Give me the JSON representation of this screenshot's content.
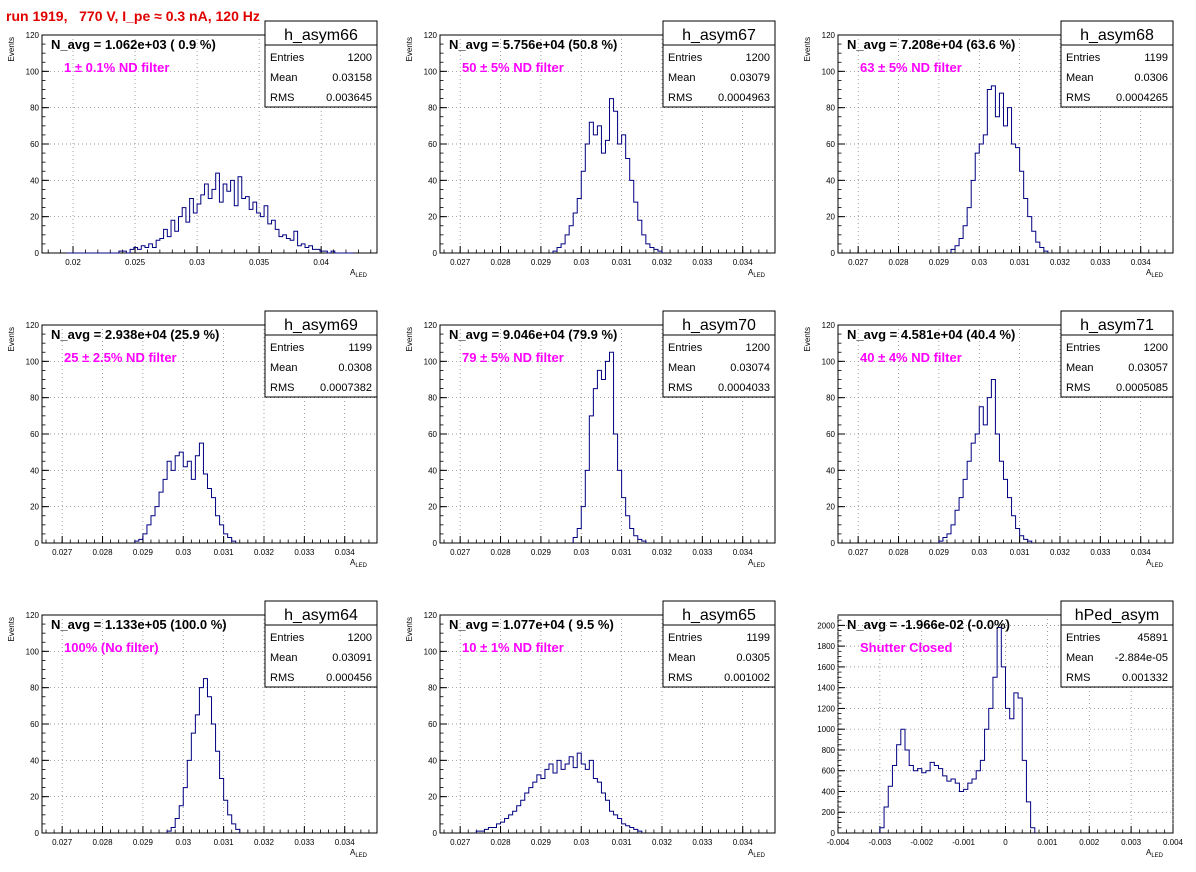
{
  "page_title": "run 1919,   770 V, I_pe ≈ 0.3 nA, 120 Hz",
  "colors": {
    "histogram_line": "#000080",
    "filter_label": "#ff00ff",
    "title": "#e00000"
  },
  "stat_labels": {
    "entries": "Entries",
    "mean": "Mean",
    "rms": "RMS"
  },
  "chart_data": [
    {
      "type": "histogram",
      "name": "h_asym66",
      "navg": "N_avg = 1.062e+03 ( 0.9 %)",
      "filter": "1 ± 0.1% ND filter",
      "entries": "1200",
      "mean": "0.03158",
      "rms": "0.003645",
      "xlabel": "A",
      "xlabel_sub": "LED",
      "ylabel": "Events",
      "xlim": [
        0.0175,
        0.0445
      ],
      "ylim": [
        0,
        120
      ],
      "xticks": [
        0.02,
        0.025,
        0.03,
        0.035,
        0.04
      ],
      "xtick_labels": [
        "0.02",
        "0.025",
        "0.03",
        "0.035",
        "0.04"
      ],
      "yticks": [
        0,
        20,
        40,
        60,
        80,
        100,
        120
      ],
      "ytick_labels": [
        "0",
        "20",
        "40",
        "60",
        "80",
        "100",
        "120"
      ],
      "bin_start": 0.0195,
      "bin_width": 0.0003,
      "counts": [
        0,
        0,
        0,
        0,
        0,
        0,
        0,
        0,
        0,
        0,
        0,
        0,
        0,
        0,
        1,
        1,
        0,
        2,
        3,
        2,
        4,
        3,
        5,
        3,
        7,
        8,
        13,
        9,
        18,
        12,
        20,
        25,
        17,
        30,
        22,
        27,
        32,
        38,
        30,
        35,
        44,
        28,
        38,
        34,
        40,
        26,
        42,
        30,
        31,
        24,
        28,
        22,
        20,
        26,
        16,
        18,
        13,
        9,
        10,
        8,
        7,
        12,
        4,
        5,
        3,
        4,
        2,
        2,
        1,
        1,
        0,
        1,
        0,
        0,
        0,
        0,
        0
      ]
    },
    {
      "type": "histogram",
      "name": "h_asym67",
      "navg": "N_avg = 5.756e+04 (50.8 %)",
      "filter": "50 ± 5% ND filter",
      "entries": "1200",
      "mean": "0.03079",
      "rms": "0.0004963",
      "xlabel": "A",
      "xlabel_sub": "LED",
      "ylabel": "Events",
      "xlim": [
        0.0265,
        0.0348
      ],
      "ylim": [
        0,
        120
      ],
      "xticks": [
        0.027,
        0.028,
        0.029,
        0.03,
        0.031,
        0.032,
        0.033,
        0.034
      ],
      "xtick_labels": [
        "0.027",
        "0.028",
        "0.029",
        "0.03",
        "0.031",
        "0.032",
        "0.033",
        "0.034"
      ],
      "yticks": [
        0,
        20,
        40,
        60,
        80,
        100,
        120
      ],
      "ytick_labels": [
        "0",
        "20",
        "40",
        "60",
        "80",
        "100",
        "120"
      ],
      "bin_start": 0.0293,
      "bin_width": 0.0001,
      "counts": [
        1,
        3,
        5,
        10,
        15,
        22,
        30,
        45,
        60,
        72,
        65,
        70,
        55,
        62,
        85,
        78,
        60,
        65,
        52,
        40,
        28,
        18,
        10,
        5,
        3,
        2,
        1
      ]
    },
    {
      "type": "histogram",
      "name": "h_asym68",
      "navg": "N_avg = 7.208e+04 (63.6 %)",
      "filter": "63 ± 5% ND filter",
      "entries": "1199",
      "mean": "0.0306",
      "rms": "0.0004265",
      "xlabel": "A",
      "xlabel_sub": "LED",
      "ylabel": "Events",
      "xlim": [
        0.0265,
        0.0348
      ],
      "ylim": [
        0,
        120
      ],
      "xticks": [
        0.027,
        0.028,
        0.029,
        0.03,
        0.031,
        0.032,
        0.033,
        0.034
      ],
      "xtick_labels": [
        "0.027",
        "0.028",
        "0.029",
        "0.03",
        "0.031",
        "0.032",
        "0.033",
        "0.034"
      ],
      "yticks": [
        0,
        20,
        40,
        60,
        80,
        100,
        120
      ],
      "ytick_labels": [
        "0",
        "20",
        "40",
        "60",
        "80",
        "100",
        "120"
      ],
      "bin_start": 0.0293,
      "bin_width": 0.0001,
      "counts": [
        2,
        4,
        8,
        15,
        25,
        40,
        55,
        60,
        65,
        90,
        92,
        75,
        88,
        70,
        80,
        60,
        58,
        45,
        30,
        20,
        12,
        6,
        3,
        1
      ]
    },
    {
      "type": "histogram",
      "name": "h_asym69",
      "navg": "N_avg = 2.938e+04 (25.9 %)",
      "filter": "25 ± 2.5% ND filter",
      "entries": "1199",
      "mean": "0.0308",
      "rms": "0.0007382",
      "xlabel": "A",
      "xlabel_sub": "LED",
      "ylabel": "Events",
      "xlim": [
        0.0265,
        0.0348
      ],
      "ylim": [
        0,
        120
      ],
      "xticks": [
        0.027,
        0.028,
        0.029,
        0.03,
        0.031,
        0.032,
        0.033,
        0.034
      ],
      "xtick_labels": [
        "0.027",
        "0.028",
        "0.029",
        "0.03",
        "0.031",
        "0.032",
        "0.033",
        "0.034"
      ],
      "yticks": [
        0,
        20,
        40,
        60,
        80,
        100,
        120
      ],
      "ytick_labels": [
        "0",
        "20",
        "40",
        "60",
        "80",
        "100",
        "120"
      ],
      "bin_start": 0.0288,
      "bin_width": 0.0001,
      "counts": [
        1,
        2,
        5,
        10,
        15,
        20,
        28,
        35,
        45,
        40,
        48,
        50,
        42,
        45,
        35,
        48,
        55,
        38,
        30,
        25,
        15,
        10,
        5,
        3,
        1
      ]
    },
    {
      "type": "histogram",
      "name": "h_asym70",
      "navg": "N_avg = 9.046e+04 (79.9 %)",
      "filter": "79 ± 5% ND filter",
      "entries": "1200",
      "mean": "0.03074",
      "rms": "0.0004033",
      "xlabel": "A",
      "xlabel_sub": "LED",
      "ylabel": "Events",
      "xlim": [
        0.0265,
        0.0348
      ],
      "ylim": [
        0,
        120
      ],
      "xticks": [
        0.027,
        0.028,
        0.029,
        0.03,
        0.031,
        0.032,
        0.033,
        0.034
      ],
      "xtick_labels": [
        "0.027",
        "0.028",
        "0.029",
        "0.03",
        "0.031",
        "0.032",
        "0.033",
        "0.034"
      ],
      "yticks": [
        0,
        20,
        40,
        60,
        80,
        100,
        120
      ],
      "ytick_labels": [
        "0",
        "20",
        "40",
        "60",
        "80",
        "100",
        "120"
      ],
      "bin_start": 0.0298,
      "bin_width": 0.0001,
      "counts": [
        3,
        8,
        20,
        40,
        70,
        85,
        95,
        90,
        100,
        105,
        60,
        40,
        25,
        15,
        8,
        4,
        2,
        1
      ]
    },
    {
      "type": "histogram",
      "name": "h_asym71",
      "navg": "N_avg = 4.581e+04 (40.4 %)",
      "filter": "40 ± 4% ND filter",
      "entries": "1200",
      "mean": "0.03057",
      "rms": "0.0005085",
      "xlabel": "A",
      "xlabel_sub": "LED",
      "ylabel": "Events",
      "xlim": [
        0.0265,
        0.0348
      ],
      "ylim": [
        0,
        120
      ],
      "xticks": [
        0.027,
        0.028,
        0.029,
        0.03,
        0.031,
        0.032,
        0.033,
        0.034
      ],
      "xtick_labels": [
        "0.027",
        "0.028",
        "0.029",
        "0.03",
        "0.031",
        "0.032",
        "0.033",
        "0.034"
      ],
      "yticks": [
        0,
        20,
        40,
        60,
        80,
        100,
        120
      ],
      "ytick_labels": [
        "0",
        "20",
        "40",
        "60",
        "80",
        "100",
        "120"
      ],
      "bin_start": 0.029,
      "bin_width": 0.0001,
      "counts": [
        1,
        3,
        5,
        10,
        18,
        25,
        35,
        45,
        55,
        60,
        75,
        65,
        80,
        90,
        60,
        45,
        35,
        25,
        15,
        8,
        4,
        2,
        1
      ]
    },
    {
      "type": "histogram",
      "name": "h_asym64",
      "navg": "N_avg = 1.133e+05 (100.0 %)",
      "filter": "100% (No filter)",
      "entries": "1200",
      "mean": "0.03091",
      "rms": "0.000456",
      "xlabel": "A",
      "xlabel_sub": "LED",
      "ylabel": "Events",
      "xlim": [
        0.0265,
        0.0348
      ],
      "ylim": [
        0,
        120
      ],
      "xticks": [
        0.027,
        0.028,
        0.029,
        0.03,
        0.031,
        0.032,
        0.033,
        0.034
      ],
      "xtick_labels": [
        "0.027",
        "0.028",
        "0.029",
        "0.03",
        "0.031",
        "0.032",
        "0.033",
        "0.034"
      ],
      "yticks": [
        0,
        20,
        40,
        60,
        80,
        100,
        120
      ],
      "ytick_labels": [
        "0",
        "20",
        "40",
        "60",
        "80",
        "100",
        "120"
      ],
      "bin_start": 0.0296,
      "bin_width": 0.0001,
      "counts": [
        1,
        3,
        8,
        15,
        25,
        40,
        55,
        65,
        80,
        85,
        75,
        60,
        45,
        30,
        18,
        10,
        5,
        2
      ]
    },
    {
      "type": "histogram",
      "name": "h_asym65",
      "navg": "N_avg = 1.077e+04 ( 9.5 %)",
      "filter": "10 ± 1% ND filter",
      "entries": "1199",
      "mean": "0.0305",
      "rms": "0.001002",
      "xlabel": "A",
      "xlabel_sub": "LED",
      "ylabel": "Events",
      "xlim": [
        0.0265,
        0.0348
      ],
      "ylim": [
        0,
        120
      ],
      "xticks": [
        0.027,
        0.028,
        0.029,
        0.03,
        0.031,
        0.032,
        0.033,
        0.034
      ],
      "xtick_labels": [
        "0.027",
        "0.028",
        "0.029",
        "0.03",
        "0.031",
        "0.032",
        "0.033",
        "0.034"
      ],
      "yticks": [
        0,
        20,
        40,
        60,
        80,
        100,
        120
      ],
      "ytick_labels": [
        "0",
        "20",
        "40",
        "60",
        "80",
        "100",
        "120"
      ],
      "bin_start": 0.0274,
      "bin_width": 0.0001,
      "counts": [
        1,
        1,
        2,
        3,
        3,
        5,
        6,
        8,
        10,
        12,
        15,
        18,
        22,
        25,
        28,
        32,
        30,
        35,
        38,
        33,
        40,
        35,
        38,
        42,
        36,
        44,
        38,
        35,
        40,
        30,
        28,
        22,
        18,
        12,
        10,
        8,
        5,
        4,
        3,
        2,
        1
      ]
    },
    {
      "type": "histogram",
      "name": "hPed_asym",
      "navg": "N_avg = -1.966e-02 (-0.0%)",
      "filter": "Shutter Closed",
      "entries": "45891",
      "mean": "-2.884e-05",
      "rms": "0.001332",
      "xlabel": "A",
      "xlabel_sub": "LED",
      "ylabel": "",
      "xlim": [
        -0.004,
        0.004
      ],
      "ylim": [
        0,
        2100
      ],
      "xticks": [
        -0.004,
        -0.003,
        -0.002,
        -0.001,
        0,
        0.001,
        0.002,
        0.003,
        0.004
      ],
      "xtick_labels": [
        "-0.004",
        "-0.003",
        "-0.002",
        "-0.001",
        "0",
        "0.001",
        "0.002",
        "0.003",
        "0.004"
      ],
      "yticks": [
        0,
        200,
        400,
        600,
        800,
        1000,
        1200,
        1400,
        1600,
        1800,
        2000
      ],
      "ytick_labels": [
        "0",
        "200",
        "400",
        "600",
        "800",
        "1000",
        "1200",
        "1400",
        "1600",
        "1800",
        "2000"
      ],
      "bin_start": -0.003,
      "bin_width": 0.0001,
      "counts": [
        50,
        250,
        450,
        650,
        850,
        1000,
        800,
        650,
        600,
        620,
        580,
        600,
        680,
        650,
        620,
        550,
        500,
        520,
        480,
        400,
        420,
        480,
        520,
        600,
        700,
        1000,
        1200,
        1500,
        1980,
        1600,
        1200,
        1100,
        1350,
        1300,
        700,
        300,
        50
      ]
    }
  ]
}
